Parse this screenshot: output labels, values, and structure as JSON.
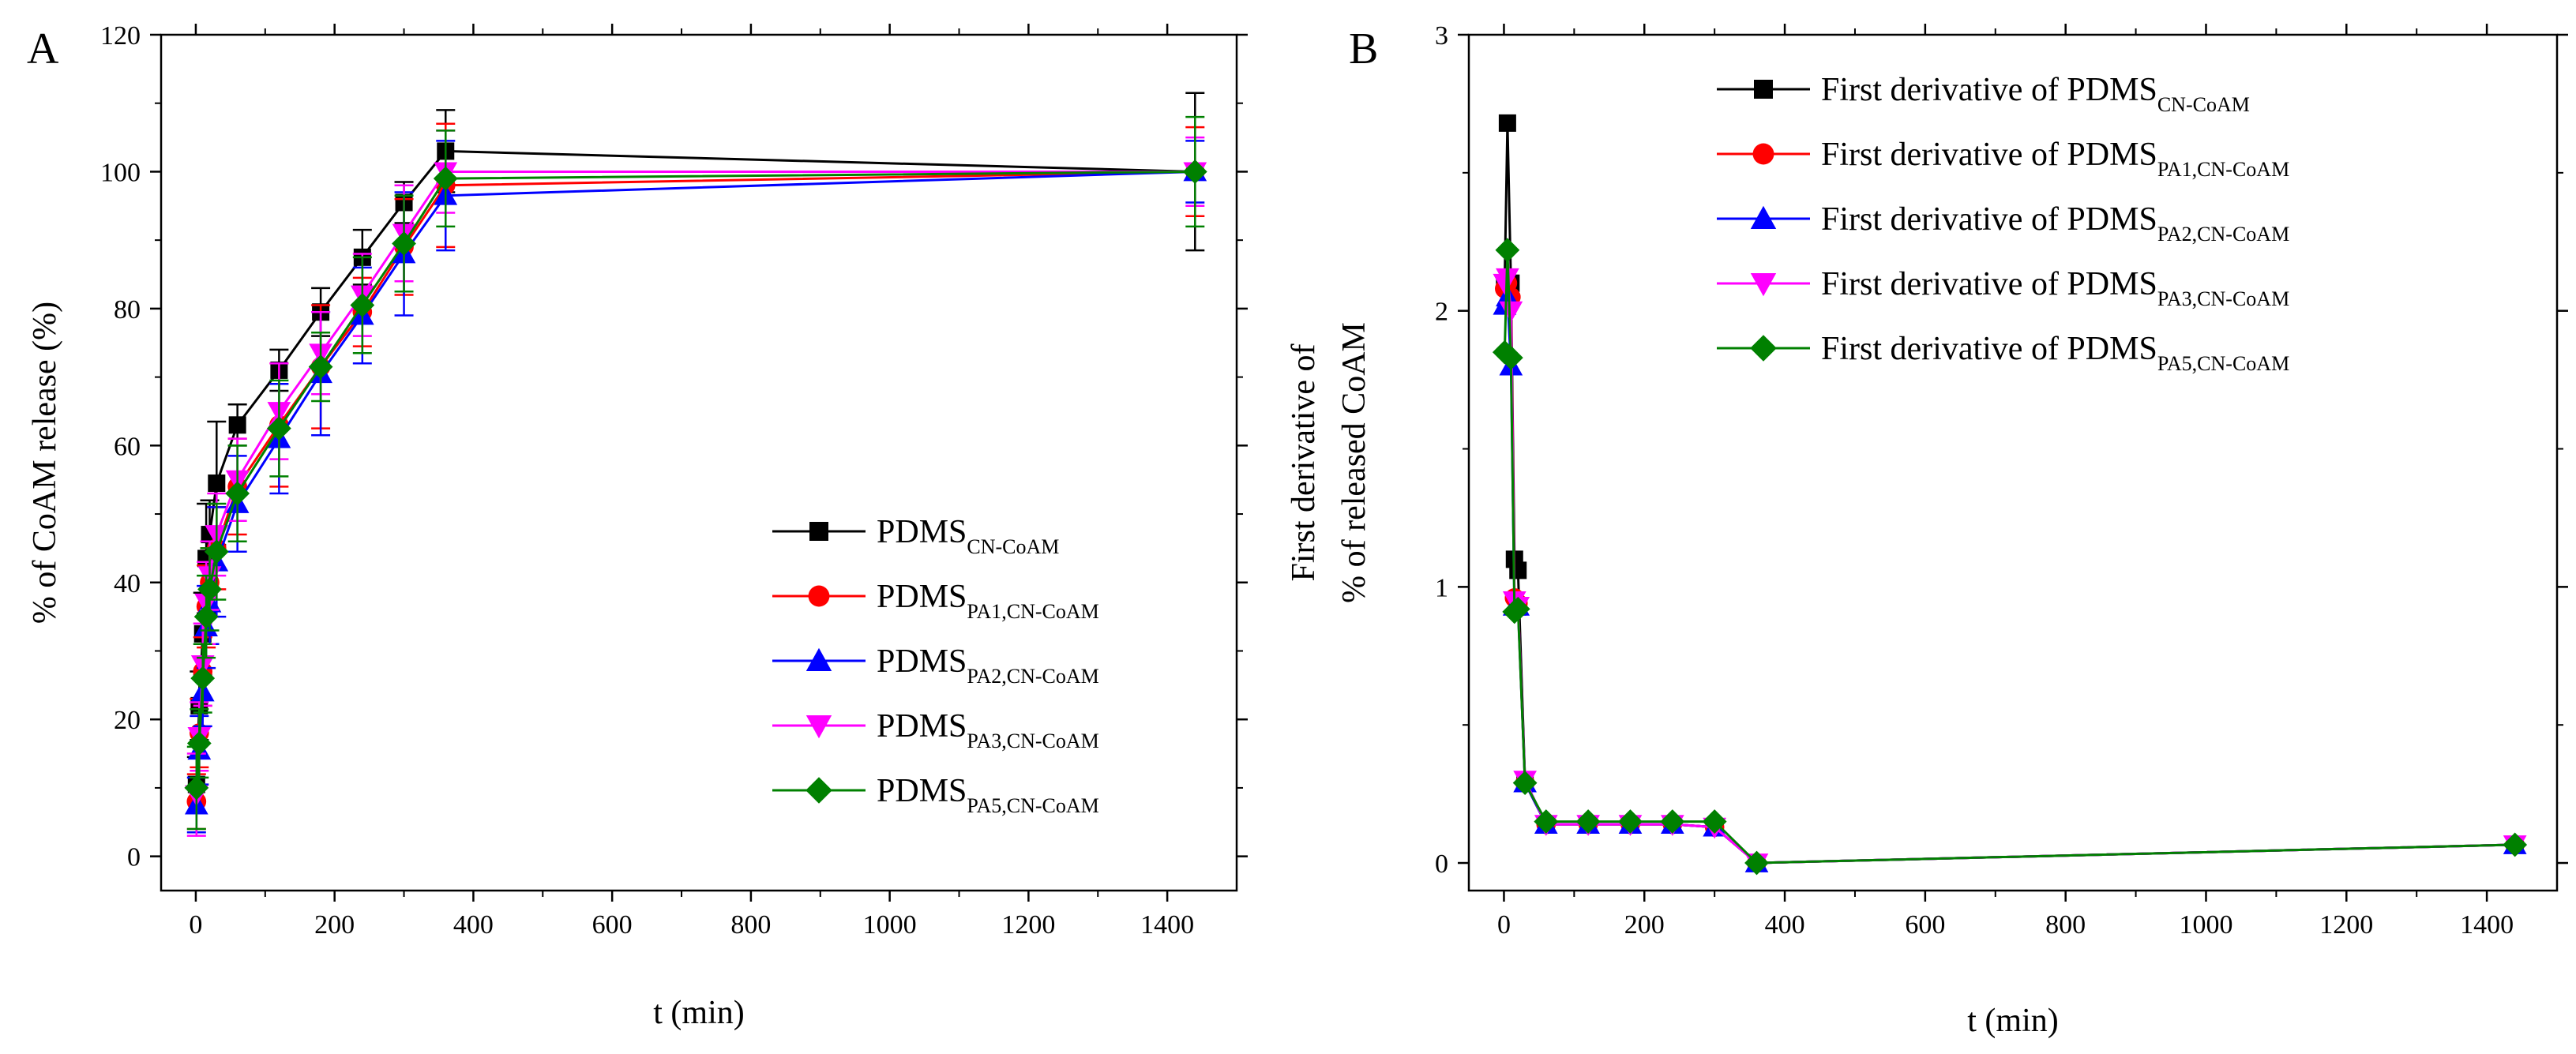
{
  "chart_data": [
    {
      "panel": "A",
      "type": "line",
      "xlabel": "t (min)",
      "ylabel": "% of CoAM release (%)",
      "xlim": [
        -50,
        1500
      ],
      "ylim": [
        -5,
        120
      ],
      "xticks": [
        0,
        200,
        400,
        600,
        800,
        1000,
        1200,
        1400
      ],
      "yticks": [
        0,
        20,
        40,
        60,
        80,
        100,
        120
      ],
      "x": [
        1,
        5,
        10,
        15,
        20,
        30,
        60,
        120,
        180,
        240,
        300,
        360,
        1440
      ],
      "error_bars": true,
      "legend_position": "center-right",
      "series": [
        {
          "name": "PDMS",
          "sub": "CN-CoAM",
          "color": "#000000",
          "marker": "square",
          "values": [
            10.5,
            22,
            32.5,
            43.5,
            47,
            54.5,
            63,
            71,
            79.5,
            87.5,
            95.5,
            103,
            100
          ],
          "errors": [
            4,
            5,
            6,
            8,
            5,
            9,
            3,
            3,
            3.5,
            4,
            3,
            6,
            11.5
          ]
        },
        {
          "name": "PDMS",
          "sub": "PA1,CN-CoAM",
          "color": "#ff0000",
          "marker": "circle",
          "values": [
            8,
            18,
            27,
            36.5,
            40,
            45,
            54,
            63,
            71.5,
            79.5,
            89,
            98,
            100
          ],
          "errors": [
            4,
            5,
            5,
            6,
            5,
            6,
            7,
            9,
            9,
            5,
            7,
            9,
            6.5
          ]
        },
        {
          "name": "PDMS",
          "sub": "PA2,CN-CoAM",
          "color": "#0000ff",
          "marker": "triangle-up",
          "values": [
            7.5,
            15.5,
            24,
            33.5,
            37,
            43,
            51.5,
            61,
            70.5,
            79,
            88,
            96.5,
            100
          ],
          "errors": [
            4,
            5,
            5,
            6,
            6,
            8,
            7,
            8,
            9,
            7,
            9,
            8,
            4.5
          ]
        },
        {
          "name": "PDMS",
          "sub": "PA3,CN-CoAM",
          "color": "#ff00ff",
          "marker": "triangle-down",
          "values": [
            9,
            17.5,
            28,
            37,
            41,
            47,
            55,
            65,
            73.5,
            82,
            91,
            100,
            100
          ],
          "errors": [
            6,
            5,
            6,
            6,
            5,
            6,
            6,
            7,
            6,
            6,
            7,
            6,
            5
          ]
        },
        {
          "name": "PDMS",
          "sub": "PA5,CN-CoAM",
          "color": "#008000",
          "marker": "diamond",
          "values": [
            10,
            16.5,
            26,
            35,
            39,
            44.5,
            53,
            62.5,
            71.5,
            80.5,
            89.5,
            99,
            100
          ],
          "errors": [
            6,
            5,
            5,
            6,
            6,
            7,
            7,
            7,
            5,
            7,
            7,
            7,
            8
          ]
        }
      ]
    },
    {
      "panel": "B",
      "type": "line",
      "xlabel": "t (min)",
      "ylabel_lines": [
        "First derivative of",
        "% of released CoAM"
      ],
      "xlim": [
        -50,
        1500
      ],
      "ylim": [
        -0.1,
        3
      ],
      "xticks": [
        0,
        200,
        400,
        600,
        800,
        1000,
        1200,
        1400
      ],
      "yticks": [
        0,
        1,
        2,
        3
      ],
      "x": [
        1,
        5,
        10,
        15,
        20,
        30,
        60,
        120,
        180,
        240,
        300,
        360,
        1440
      ],
      "legend_position": "top-right",
      "series": [
        {
          "name": "First derivative of PDMS",
          "sub": "CN-CoAM",
          "color": "#000000",
          "marker": "square",
          "values": [
            2.1,
            2.68,
            2.1,
            1.1,
            1.06,
            0.3,
            0.14,
            0.14,
            0.14,
            0.14,
            0.13,
            0.0,
            0.066
          ]
        },
        {
          "name": "First derivative of PDMS",
          "sub": "PA1,CN-CoAM",
          "color": "#ff0000",
          "marker": "circle",
          "values": [
            2.08,
            2.1,
            2.05,
            0.96,
            0.94,
            0.29,
            0.14,
            0.14,
            0.14,
            0.14,
            0.13,
            0.0,
            0.066
          ]
        },
        {
          "name": "First derivative of PDMS",
          "sub": "PA2,CN-CoAM",
          "color": "#0000ff",
          "marker": "triangle-up",
          "values": [
            2.02,
            2.05,
            1.8,
            0.93,
            0.93,
            0.29,
            0.14,
            0.14,
            0.14,
            0.14,
            0.13,
            0.0,
            0.066
          ]
        },
        {
          "name": "First derivative of PDMS",
          "sub": "PA3,CN-CoAM",
          "color": "#ff00ff",
          "marker": "triangle-down",
          "values": [
            2.1,
            2.12,
            2.0,
            0.95,
            0.93,
            0.3,
            0.14,
            0.14,
            0.14,
            0.14,
            0.13,
            0.0,
            0.066
          ]
        },
        {
          "name": "First derivative of PDMS",
          "sub": "PA5,CN-CoAM",
          "color": "#008000",
          "marker": "diamond",
          "values": [
            1.85,
            2.22,
            1.83,
            0.91,
            0.92,
            0.29,
            0.15,
            0.15,
            0.15,
            0.15,
            0.15,
            0.0,
            0.066
          ]
        }
      ]
    }
  ]
}
